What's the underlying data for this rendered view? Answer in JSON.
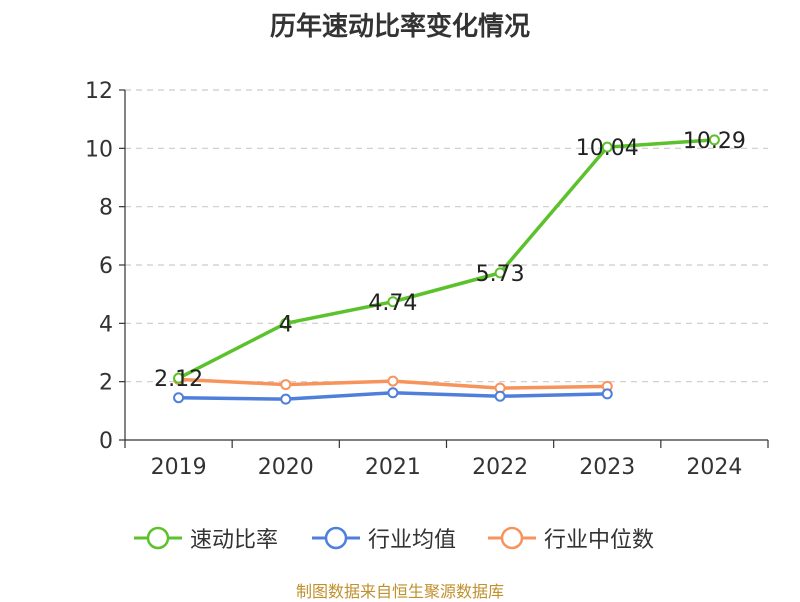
{
  "chart_data": {
    "type": "line",
    "title": "历年速动比率变化情况",
    "categories": [
      "2019",
      "2020",
      "2021",
      "2022",
      "2023",
      "2024"
    ],
    "ylim": [
      0,
      12
    ],
    "yticks": [
      0,
      2,
      4,
      6,
      8,
      10,
      12
    ],
    "grid": true,
    "legend_position": "bottom",
    "series": [
      {
        "name": "速动比率",
        "color": "#5cc22b",
        "values": [
          2.12,
          4,
          4.74,
          5.73,
          10.04,
          10.29
        ],
        "labels": [
          "2.12",
          "4",
          "4.74",
          "5.73",
          "10.04",
          "10.29"
        ]
      },
      {
        "name": "行业均值",
        "color": "#4f7fdb",
        "values": [
          1.45,
          1.4,
          1.62,
          1.5,
          1.58,
          null
        ]
      },
      {
        "name": "行业中位数",
        "color": "#f7945c",
        "values": [
          2.08,
          1.9,
          2.02,
          1.78,
          1.84,
          null
        ]
      }
    ]
  },
  "footer": "制图数据来自恒生聚源数据库"
}
